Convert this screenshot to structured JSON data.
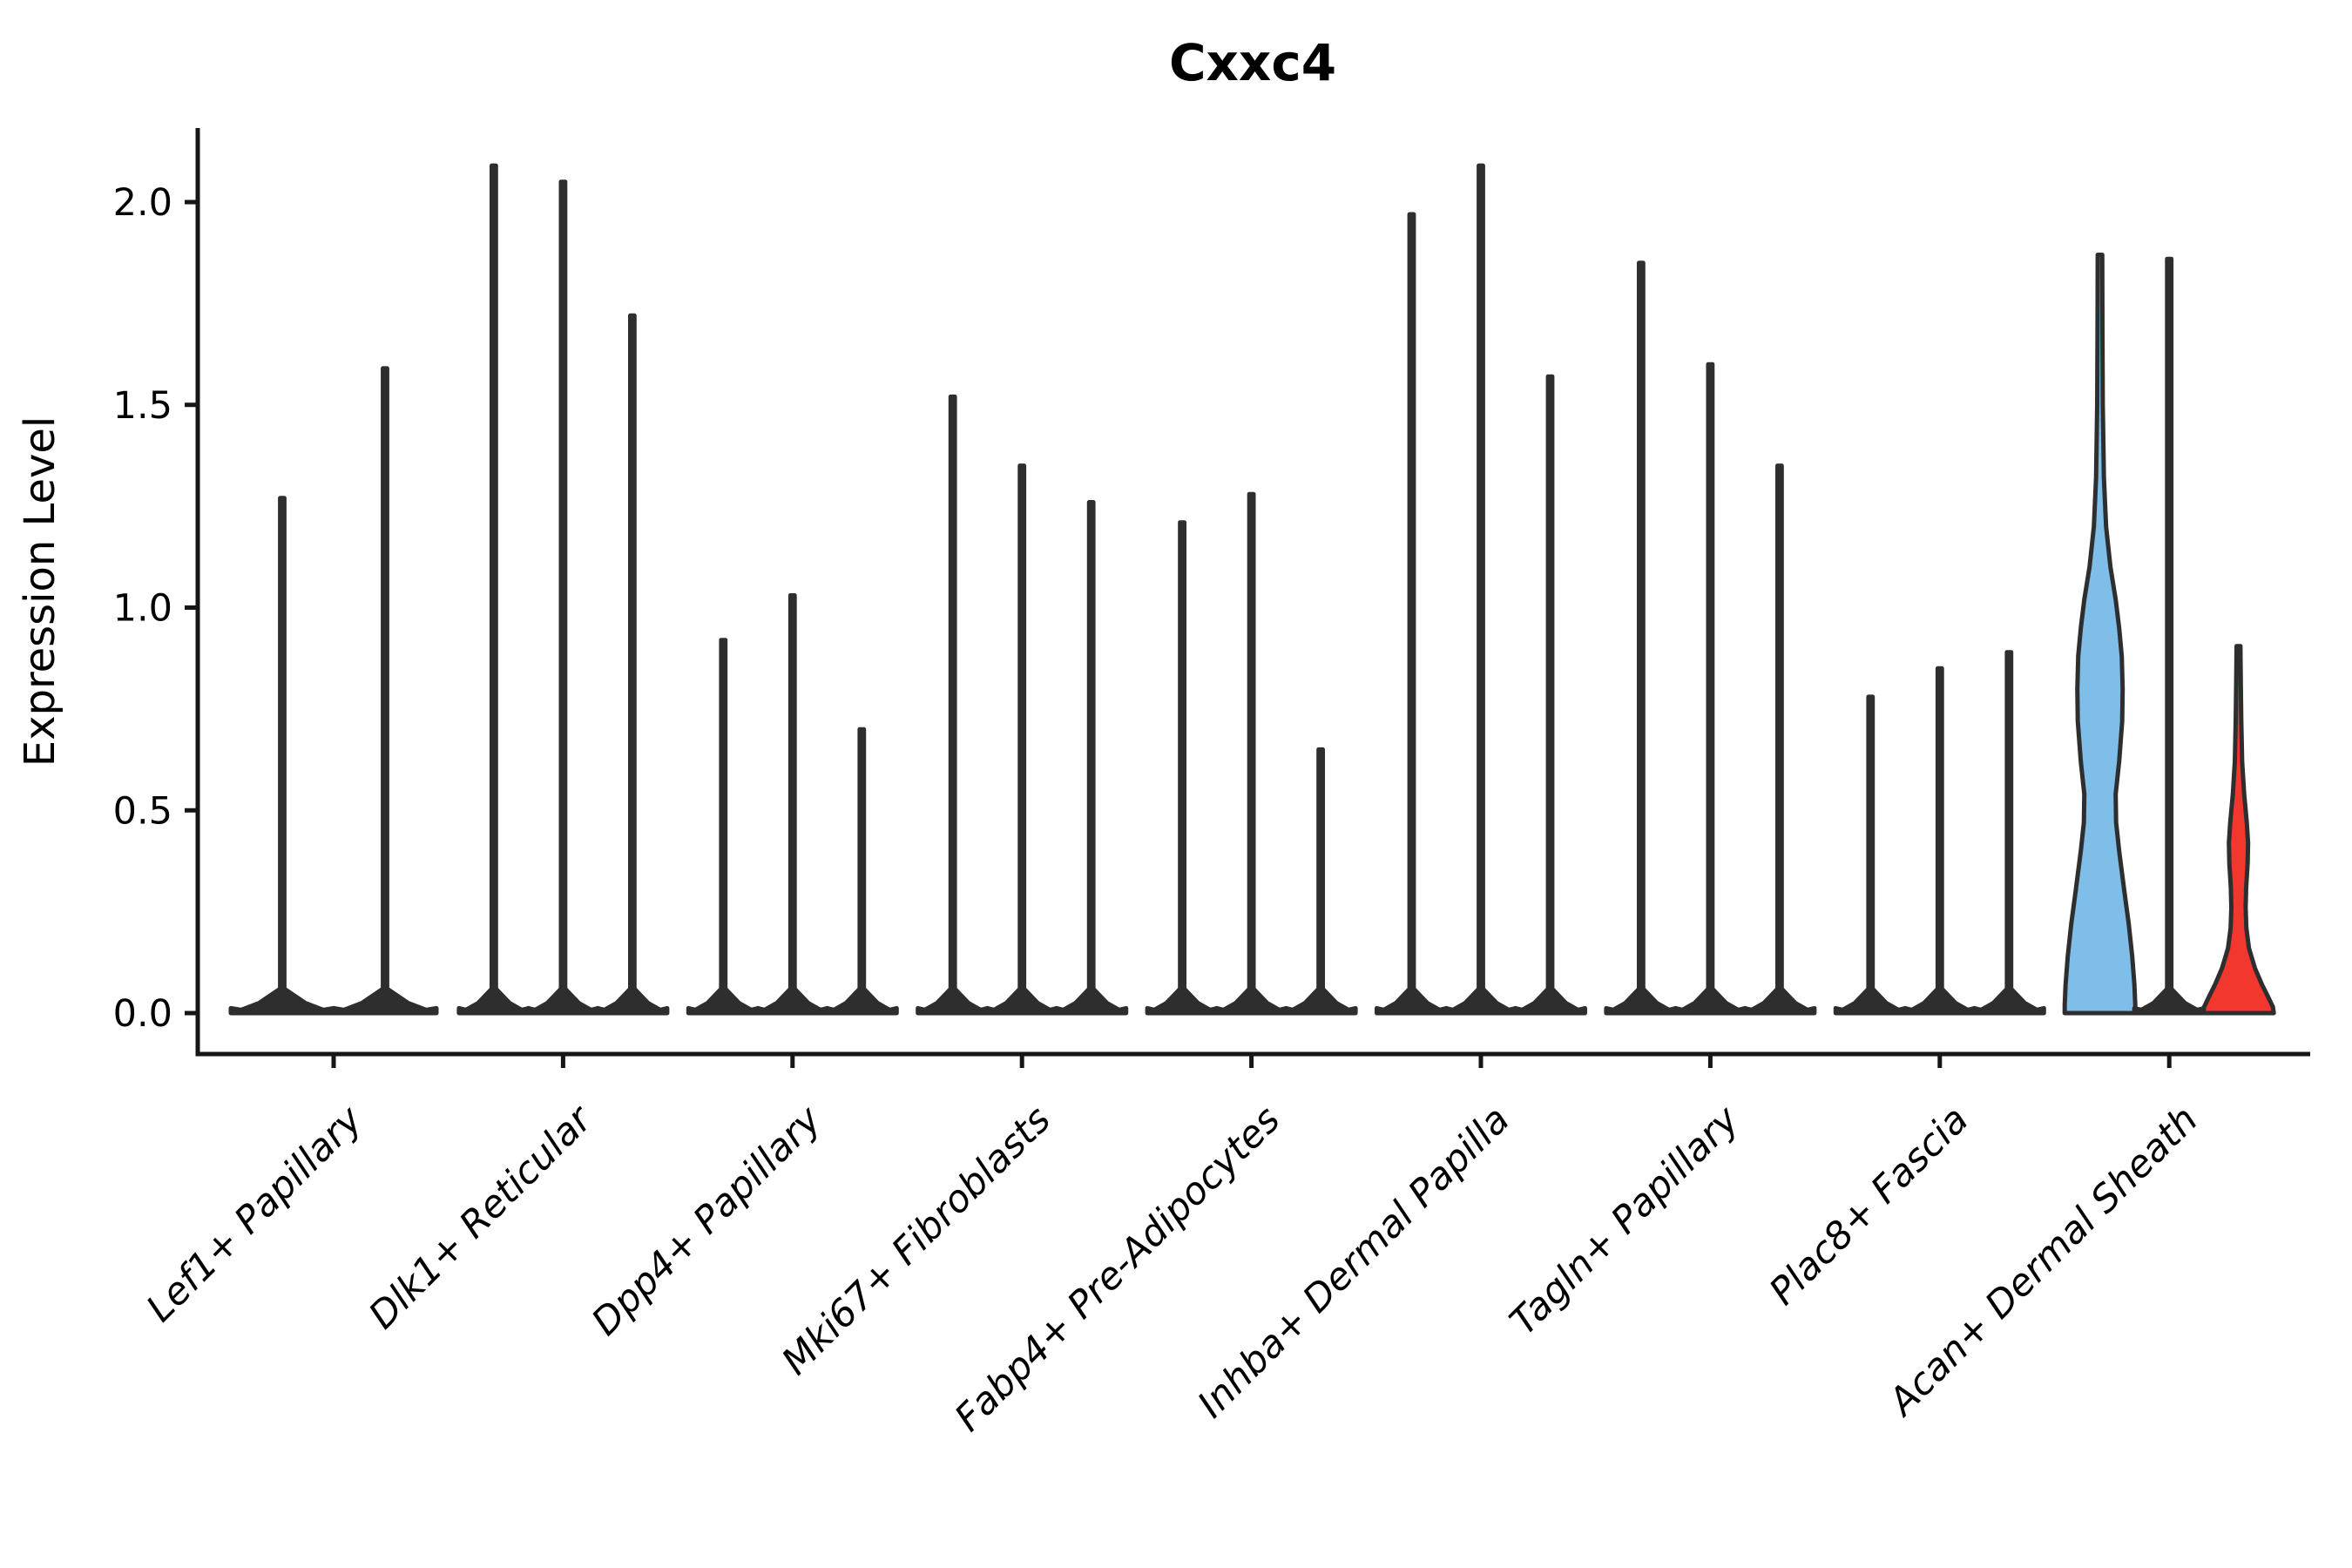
{
  "title": "Cxxc4",
  "chart_data": {
    "type": "violin",
    "title": "Cxxc4",
    "ylabel": "Expression Level",
    "xlabel": "",
    "yticks": [
      0,
      0.5,
      1.0,
      1.5,
      2.0
    ],
    "ytick_labels": [
      "0.0",
      "0.5",
      "1.0",
      "1.5",
      "2.0"
    ],
    "ylim": [
      0,
      2.15
    ],
    "grid": false,
    "legend": false,
    "outline_color": "#2e2e2e",
    "axis_color": "#161616",
    "categories": [
      "Lef1+ Papillary",
      "Dlk1+ Reticular",
      "Dpp4+ Papillary",
      "Mki67+ Fibroblasts",
      "Fabp4+ Pre-Adipocytes",
      "Inhba+ Dermal Papilla",
      "Tagln+ Papillary",
      "Plac8+ Fascia",
      "Acan+ Dermal Sheath"
    ],
    "groups": [
      {
        "category": "Lef1+ Papillary",
        "violins": [
          {
            "offset": -59,
            "max": 1.27,
            "style": "spike",
            "base_hw": 59
          },
          {
            "offset": 59,
            "max": 1.59,
            "style": "spike",
            "base_hw": 59
          }
        ]
      },
      {
        "category": "Dlk1+ Reticular",
        "violins": [
          {
            "offset": -79.5,
            "max": 2.09,
            "style": "spike",
            "base_hw": 40
          },
          {
            "offset": 0,
            "max": 2.05,
            "style": "spike",
            "base_hw": 40
          },
          {
            "offset": 79.5,
            "max": 1.72,
            "style": "spike",
            "base_hw": 40
          }
        ]
      },
      {
        "category": "Dpp4+ Papillary",
        "violins": [
          {
            "offset": -79.5,
            "max": 0.92,
            "style": "spike",
            "base_hw": 40
          },
          {
            "offset": 0,
            "max": 1.03,
            "style": "spike",
            "base_hw": 40
          },
          {
            "offset": 79.5,
            "max": 0.7,
            "style": "spike",
            "base_hw": 40
          }
        ]
      },
      {
        "category": "Mki67+ Fibroblasts",
        "violins": [
          {
            "offset": -79.5,
            "max": 1.52,
            "style": "spike",
            "base_hw": 40
          },
          {
            "offset": 0,
            "max": 1.35,
            "style": "spike",
            "base_hw": 40
          },
          {
            "offset": 79.5,
            "max": 1.26,
            "style": "spike",
            "base_hw": 40
          }
        ]
      },
      {
        "category": "Fabp4+ Pre-Adipocytes",
        "violins": [
          {
            "offset": -79.5,
            "max": 1.21,
            "style": "spike",
            "base_hw": 40
          },
          {
            "offset": 0,
            "max": 1.28,
            "style": "spike",
            "base_hw": 40
          },
          {
            "offset": 79.5,
            "max": 0.65,
            "style": "spike",
            "base_hw": 40
          }
        ]
      },
      {
        "category": "Inhba+ Dermal Papilla",
        "violins": [
          {
            "offset": -79.5,
            "max": 1.97,
            "style": "spike",
            "base_hw": 40
          },
          {
            "offset": 0,
            "max": 2.09,
            "style": "spike",
            "base_hw": 40
          },
          {
            "offset": 79.5,
            "max": 1.57,
            "style": "spike",
            "base_hw": 40
          }
        ]
      },
      {
        "category": "Tagln+ Papillary",
        "violins": [
          {
            "offset": -79.5,
            "max": 1.85,
            "style": "spike",
            "base_hw": 40
          },
          {
            "offset": 0,
            "max": 1.6,
            "style": "spike",
            "base_hw": 40
          },
          {
            "offset": 79.5,
            "max": 1.35,
            "style": "spike",
            "base_hw": 40
          }
        ]
      },
      {
        "category": "Plac8+ Fascia",
        "violins": [
          {
            "offset": -79.5,
            "max": 0.78,
            "style": "spike",
            "base_hw": 40
          },
          {
            "offset": 0,
            "max": 0.85,
            "style": "spike",
            "base_hw": 40
          },
          {
            "offset": 79.5,
            "max": 0.89,
            "style": "spike",
            "base_hw": 40
          }
        ]
      },
      {
        "category": "Acan+ Dermal Sheath",
        "violins": [
          {
            "offset": -79.5,
            "max": 1.87,
            "style": "shape",
            "fill": "#7EBEE9",
            "profile": [
              [
                1.87,
                2.6
              ],
              [
                1.7,
                2.8
              ],
              [
                1.5,
                3.2
              ],
              [
                1.32,
                4.5
              ],
              [
                1.2,
                7
              ],
              [
                1.1,
                12
              ],
              [
                1.02,
                18
              ],
              [
                0.95,
                22
              ],
              [
                0.88,
                25
              ],
              [
                0.8,
                26
              ],
              [
                0.72,
                25.5
              ],
              [
                0.62,
                22
              ],
              [
                0.54,
                18
              ],
              [
                0.47,
                18.5
              ],
              [
                0.4,
                22
              ],
              [
                0.3,
                28
              ],
              [
                0.22,
                33
              ],
              [
                0.14,
                37
              ],
              [
                0.07,
                39.5
              ],
              [
                0.02,
                40.5
              ],
              [
                0,
                40.5
              ]
            ]
          },
          {
            "offset": 0,
            "max": 1.86,
            "style": "spike",
            "base_hw": 40
          },
          {
            "offset": 79.5,
            "max": 0.905,
            "style": "shape",
            "fill": "#F2382E",
            "profile": [
              [
                0.905,
                2.2
              ],
              [
                0.82,
                2.6
              ],
              [
                0.72,
                3.2
              ],
              [
                0.62,
                4.2
              ],
              [
                0.54,
                6.5
              ],
              [
                0.47,
                9.5
              ],
              [
                0.42,
                11
              ],
              [
                0.37,
                10.5
              ],
              [
                0.31,
                8.8
              ],
              [
                0.26,
                8.2
              ],
              [
                0.21,
                9
              ],
              [
                0.16,
                12
              ],
              [
                0.11,
                19
              ],
              [
                0.07,
                27
              ],
              [
                0.04,
                34
              ],
              [
                0.015,
                39.5
              ],
              [
                0,
                40.5
              ]
            ]
          }
        ]
      }
    ]
  }
}
